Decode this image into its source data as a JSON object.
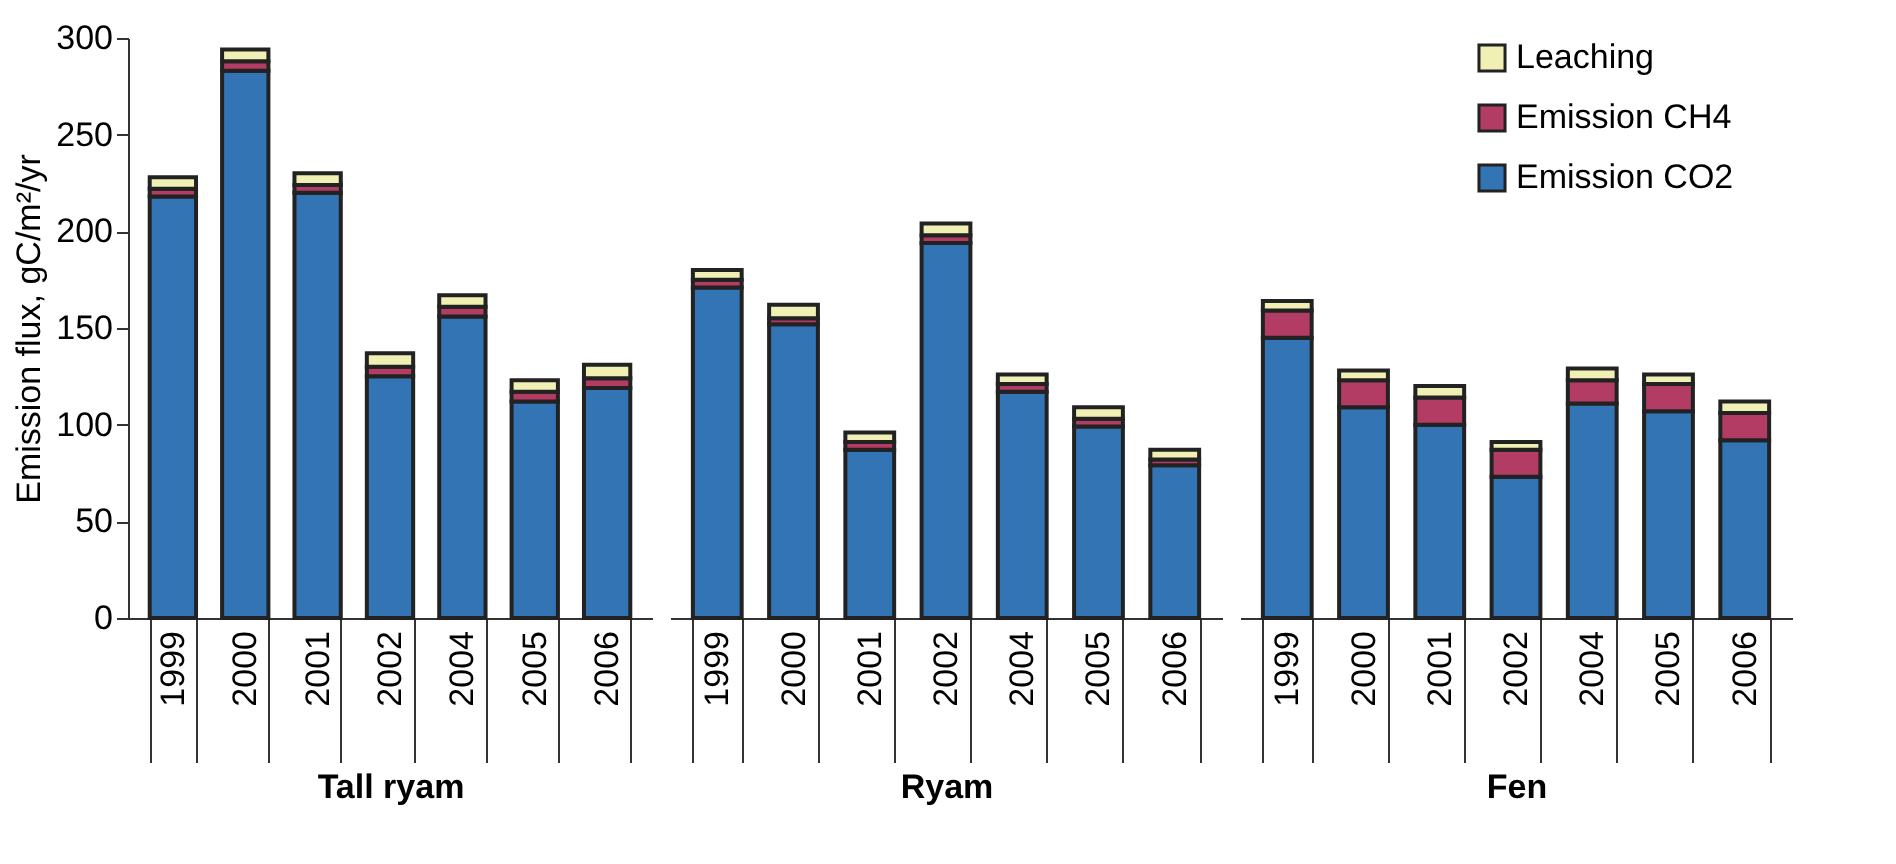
{
  "chart_data": [
    {
      "type": "bar",
      "stacked": true,
      "xlabel": "Tall ryam",
      "ylabel": "Emission flux, gC/m²/yr",
      "categories": [
        "1999",
        "2000",
        "2001",
        "2002",
        "2004",
        "2005",
        "2006"
      ],
      "ylim": [
        0,
        300
      ],
      "yticks": [
        0,
        50,
        100,
        150,
        200,
        250,
        300
      ],
      "grid": false,
      "legend": "top right",
      "series": [
        {
          "name": "Emission CO2",
          "color": "#3274b4",
          "values": [
            218,
            283,
            220,
            125,
            156,
            112,
            119
          ]
        },
        {
          "name": "Emission CH4",
          "color": "#b23c64",
          "values": [
            4,
            5,
            4,
            5,
            5,
            5,
            5
          ]
        },
        {
          "name": "Leaching",
          "color": "#f0f0b4",
          "values": [
            6,
            6,
            6,
            7,
            6,
            6,
            7
          ]
        }
      ]
    },
    {
      "type": "bar",
      "stacked": true,
      "xlabel": "Ryam",
      "categories": [
        "1999",
        "2000",
        "2001",
        "2002",
        "2004",
        "2005",
        "2006"
      ],
      "ylim": [
        0,
        300
      ],
      "tick_labels": "x",
      "grid": false,
      "series": [
        {
          "color": "#3274b4",
          "values": [
            171,
            152,
            87,
            194,
            117,
            99,
            79
          ]
        },
        {
          "color": "#b23c64",
          "values": [
            4,
            3,
            4,
            4,
            4,
            4,
            3
          ]
        },
        {
          "color": "#f0f0b4",
          "values": [
            5,
            7,
            5,
            6,
            5,
            6,
            5
          ]
        }
      ]
    },
    {
      "type": "bar",
      "stacked": true,
      "xlabel": "Fen",
      "categories": [
        "1999",
        "2000",
        "2001",
        "2002",
        "2004",
        "2005",
        "2006"
      ],
      "ylim": [
        0,
        300
      ],
      "tick_labels": "x",
      "grid": false,
      "series": [
        {
          "color": "#3274b4",
          "values": [
            145,
            109,
            100,
            73,
            111,
            107,
            92
          ]
        },
        {
          "color": "#b23c64",
          "values": [
            14,
            14,
            14,
            14,
            12,
            14,
            14
          ]
        },
        {
          "color": "#f0f0b4",
          "values": [
            5,
            5,
            6,
            4,
            6,
            5,
            6
          ]
        }
      ]
    }
  ]
}
